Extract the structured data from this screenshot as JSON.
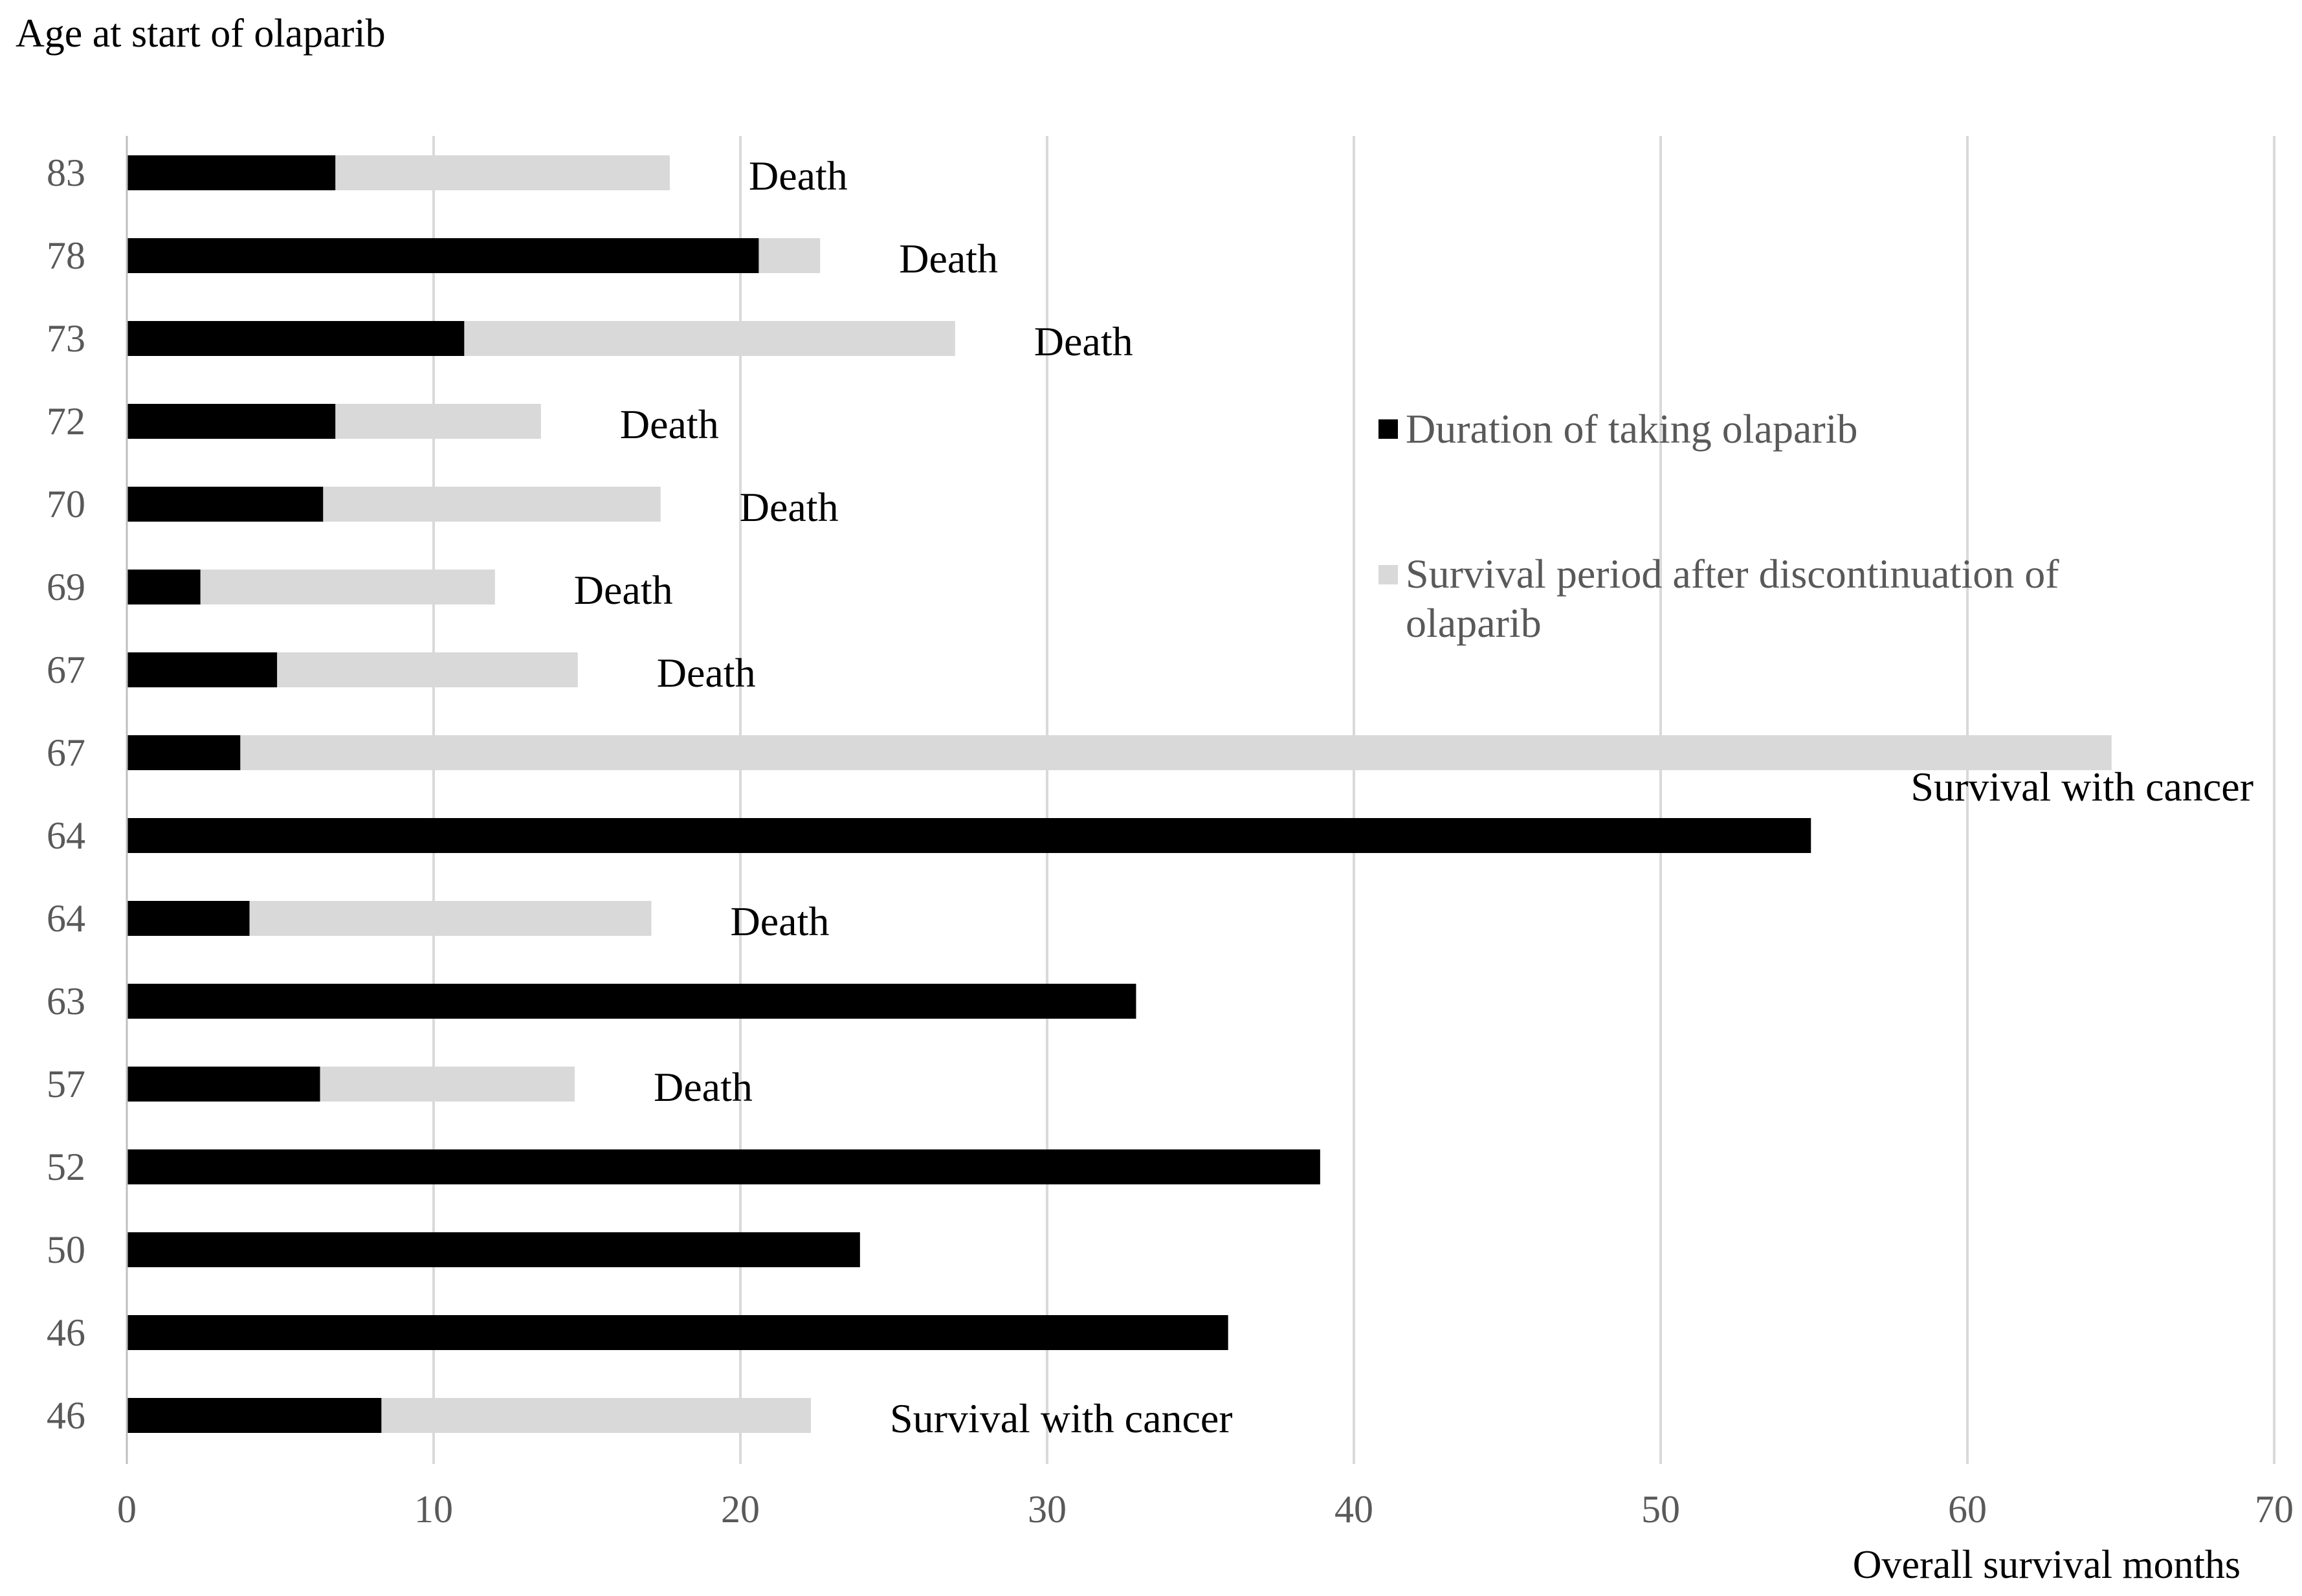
{
  "chart_data": {
    "type": "bar",
    "orientation": "horizontal",
    "stacked": true,
    "title": "",
    "ylabel": "Age at start of olaparib",
    "xlabel": "Overall survival months",
    "xlim": [
      0,
      70
    ],
    "xticks": [
      0,
      10,
      20,
      30,
      40,
      50,
      60,
      70
    ],
    "grid": "vertical",
    "legend_position": "right",
    "categories": [
      "83",
      "78",
      "73",
      "72",
      "70",
      "69",
      "67",
      "67",
      "64",
      "64",
      "63",
      "57",
      "52",
      "50",
      "46",
      "46"
    ],
    "series": [
      {
        "name": "Duration of taking olaparib",
        "color": "#000000",
        "values": [
          6.8,
          20.6,
          11.0,
          6.8,
          6.4,
          2.4,
          4.9,
          3.7,
          54.9,
          4.0,
          32.9,
          6.3,
          38.9,
          23.9,
          35.9,
          8.3
        ]
      },
      {
        "name": "Survival period after discontinuation of olaparib",
        "color": "#d9d9d9",
        "values": [
          10.9,
          2.0,
          16.0,
          6.7,
          11.0,
          9.6,
          9.8,
          61.0,
          0,
          13.1,
          0,
          8.3,
          0,
          0,
          0,
          14.0
        ]
      }
    ],
    "annotations": [
      "Death",
      "Death",
      "Death",
      "Death",
      "Death",
      "Death",
      "Death",
      "Survival with cancer",
      "",
      "Death",
      "",
      "Death",
      "",
      "",
      "",
      "Survival with cancer"
    ]
  }
}
